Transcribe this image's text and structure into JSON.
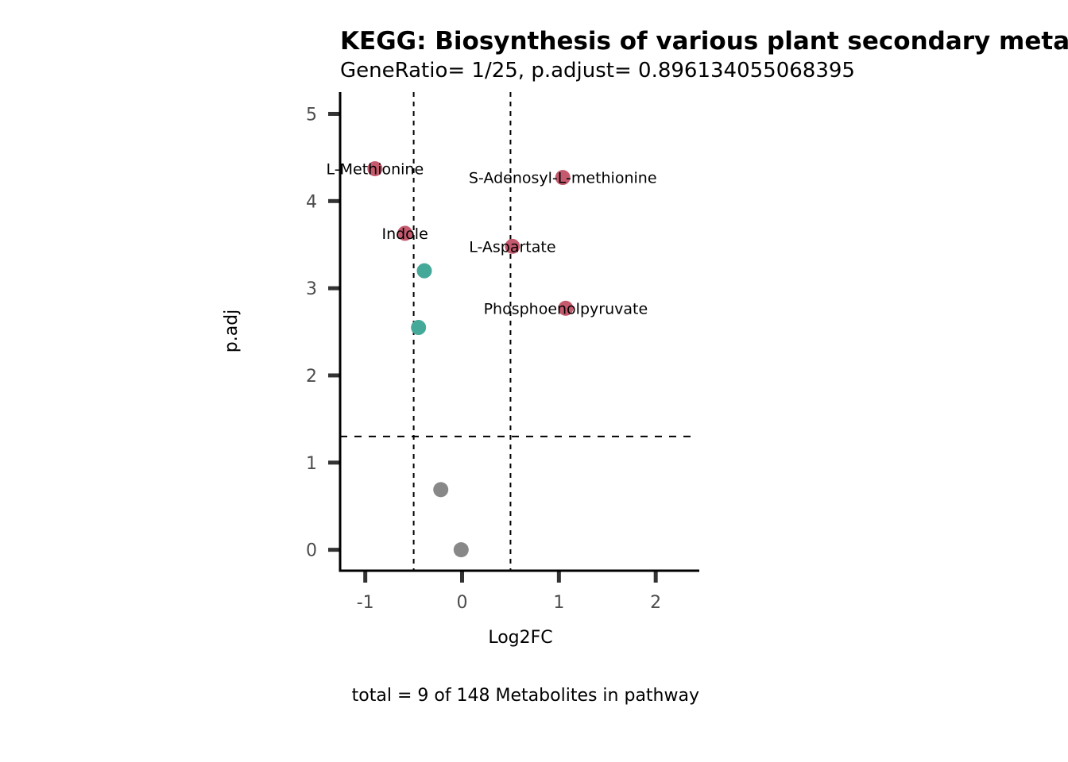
{
  "chart_data": {
    "type": "scatter",
    "title": "KEGG: Biosynthesis of various plant secondary metabolites",
    "subtitle": "GeneRatio= 1/25, p.adjust= 0.896134055068395",
    "xlabel": "Log2FC",
    "ylabel": "p.adj",
    "caption": "total = 9 of 148 Metabolites in pathway",
    "xlim": [
      -1.26,
      2.45
    ],
    "ylim": [
      -0.24,
      5.25
    ],
    "x_ticks": [
      -1,
      0,
      1,
      2
    ],
    "x_tick_labels": [
      "-1",
      "0",
      "1",
      "2"
    ],
    "y_ticks": [
      0,
      1,
      2,
      3,
      4,
      5
    ],
    "y_tick_labels": [
      "0",
      "1",
      "2",
      "3",
      "4",
      "5"
    ],
    "thresholds": {
      "x": [
        -0.5,
        0.5
      ],
      "y": 1.3
    },
    "grid": false,
    "colors": {
      "up": "#c55a6e",
      "down": "#45a99a",
      "ns": "#888888",
      "threshold_line": "#000000",
      "axis_line": "#000000",
      "tick_mark": "#333333"
    },
    "points": [
      {
        "label": "L-Methionine",
        "x": -0.9,
        "y": 4.37,
        "group": "up"
      },
      {
        "label": "S-Adenosyl-L-methionine",
        "x": 1.04,
        "y": 4.27,
        "group": "up"
      },
      {
        "label": "Indole",
        "x": -0.59,
        "y": 3.63,
        "group": "up"
      },
      {
        "label": "L-Aspartate",
        "x": 0.52,
        "y": 3.48,
        "group": "up"
      },
      {
        "label": "Phosphoenolpyruvate",
        "x": 1.07,
        "y": 2.77,
        "group": "up"
      },
      {
        "label": "",
        "x": -0.39,
        "y": 3.2,
        "group": "down"
      },
      {
        "label": "",
        "x": -0.45,
        "y": 2.55,
        "group": "down"
      },
      {
        "label": "",
        "x": -0.22,
        "y": 0.69,
        "group": "ns"
      },
      {
        "label": "",
        "x": -0.01,
        "y": 0.0,
        "group": "ns"
      }
    ]
  }
}
